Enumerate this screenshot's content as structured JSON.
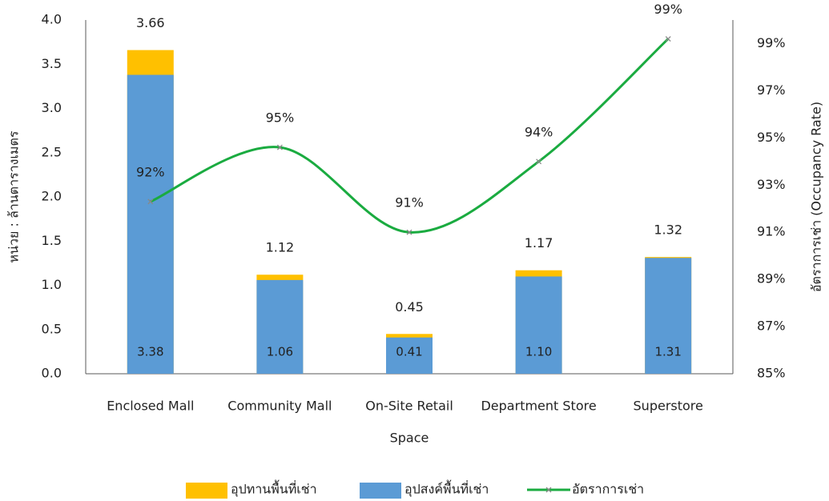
{
  "chart_data": {
    "type": "bar",
    "categories": [
      "Enclosed Mall",
      "Community Mall",
      "On-Site Retail",
      "Department Store",
      "Superstore"
    ],
    "series": [
      {
        "name": "อุปทานพื้นที่เช่า",
        "color": "#ffc000",
        "values": [
          3.66,
          1.12,
          0.45,
          1.17,
          1.32
        ]
      },
      {
        "name": "อุปสงค์พื้นที่เช่า",
        "color": "#5b9bd5",
        "values": [
          3.38,
          1.06,
          0.41,
          1.1,
          1.31
        ],
        "value_labels": [
          "3.38",
          "1.06",
          "0.41",
          "1.10",
          "1.31"
        ]
      },
      {
        "name": "อัตราการเช่า",
        "color": "#1aab40",
        "type": "line",
        "axis": "y2",
        "values": [
          92.3,
          94.6,
          91.0,
          94.0,
          99.2
        ],
        "value_labels": [
          "92%",
          "95%",
          "91%",
          "94%",
          "99%"
        ]
      }
    ],
    "x_label": "Space",
    "y_label": "หน่วย : ล้านตารางเมตร",
    "y2_label": "อัตราการเช่า (Occupancy Rate)",
    "ylim": [
      0,
      4
    ],
    "yticks": [
      {
        "value": 0,
        "label": "0.0"
      },
      {
        "value": 0.5,
        "label": "0.5"
      },
      {
        "value": 1,
        "label": "1.0"
      },
      {
        "value": 1.5,
        "label": "1.5"
      },
      {
        "value": 2,
        "label": "2.0"
      },
      {
        "value": 2.5,
        "label": "2.5"
      },
      {
        "value": 3,
        "label": "3.0"
      },
      {
        "value": 3.5,
        "label": "3.5"
      },
      {
        "value": 4,
        "label": "4.0"
      }
    ],
    "y2lim": [
      85,
      100
    ],
    "y2ticks": [
      {
        "value": 85,
        "label": "85%"
      },
      {
        "value": 87,
        "label": "87%"
      },
      {
        "value": 89,
        "label": "89%"
      },
      {
        "value": 91,
        "label": "91%"
      },
      {
        "value": 93,
        "label": "93%"
      },
      {
        "value": 95,
        "label": "95%"
      },
      {
        "value": 97,
        "label": "97%"
      },
      {
        "value": 99,
        "label": "99%"
      }
    ],
    "legend": "bottom"
  }
}
